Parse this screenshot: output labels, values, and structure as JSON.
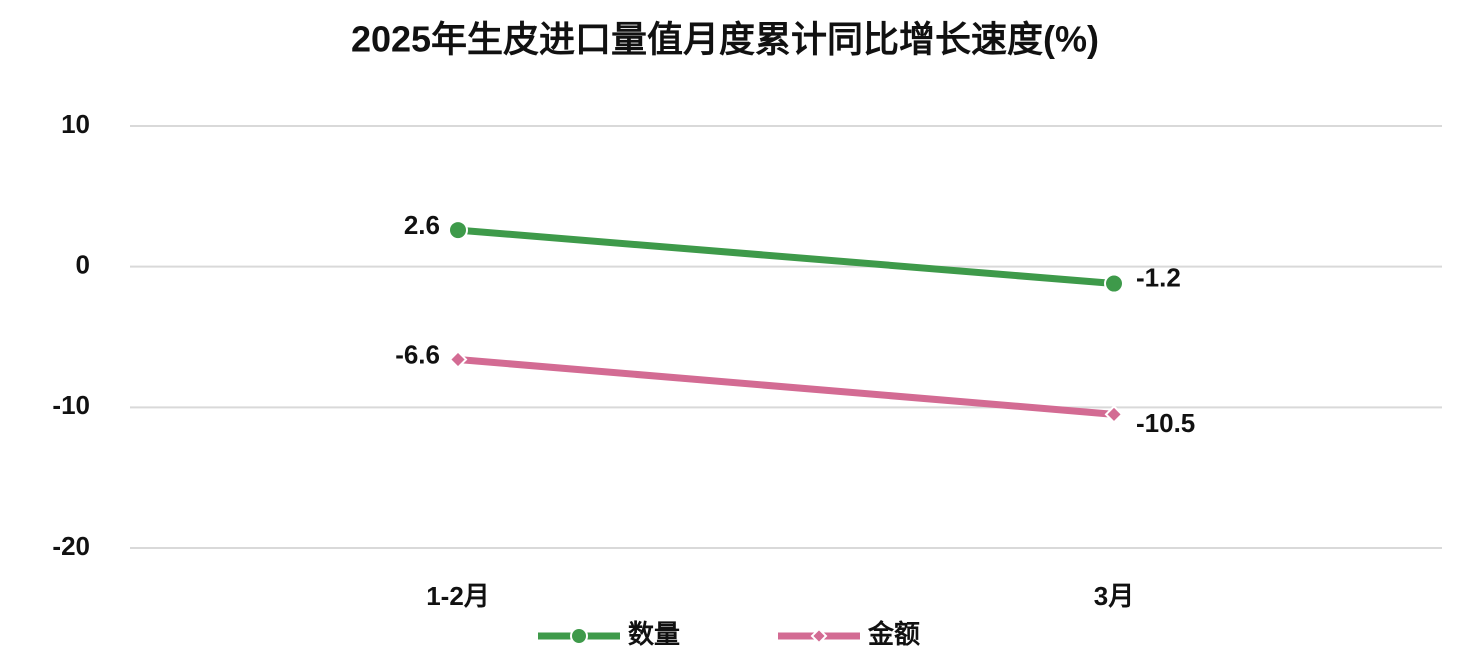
{
  "chart_data": {
    "type": "line",
    "title": "2025年生皮进口量值月度累计同比增长速度(%)",
    "categories": [
      "1-2月",
      "3月"
    ],
    "series": [
      {
        "name": "数量",
        "color": "#3e9a4a",
        "marker": "circle",
        "values": [
          2.6,
          -1.2
        ]
      },
      {
        "name": "金额",
        "color": "#d36b93",
        "marker": "diamond",
        "values": [
          -6.6,
          -10.5
        ]
      }
    ],
    "ylim": [
      -20,
      10
    ],
    "yticks": [
      -20,
      -10,
      0,
      10
    ],
    "grid": true,
    "legend": "bottom"
  }
}
